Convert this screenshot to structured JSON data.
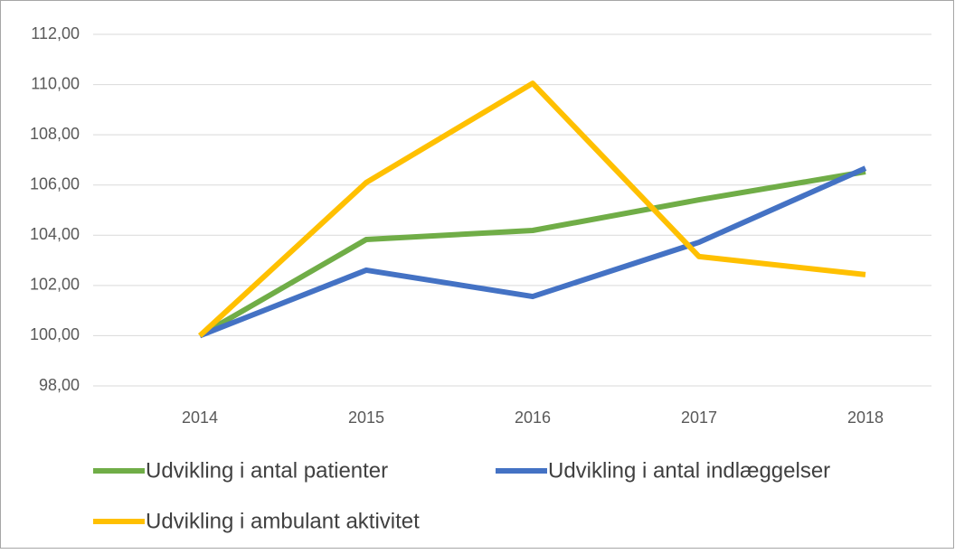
{
  "chart_data": {
    "type": "line",
    "categories": [
      "2014",
      "2015",
      "2016",
      "2017",
      "2018"
    ],
    "series": [
      {
        "name": "Udvikling i antal patienter",
        "color": "#70ad47",
        "values": [
          100,
          103.83,
          104.19,
          105.41,
          106.53
        ]
      },
      {
        "name": "Udvikling i antal indlæggelser",
        "color": "#4472c4",
        "values": [
          100,
          102.61,
          101.56,
          103.72,
          106.67
        ]
      },
      {
        "name": "Udvikling i ambulant aktivitet",
        "color": "#ffc000",
        "values": [
          100,
          106.1,
          110.05,
          103.15,
          102.43
        ]
      }
    ],
    "ylim": [
      98,
      112
    ],
    "yticks": [
      {
        "value": 98,
        "label": "98,00"
      },
      {
        "value": 100,
        "label": "100,00"
      },
      {
        "value": 102,
        "label": "102,00"
      },
      {
        "value": 104,
        "label": "104,00"
      },
      {
        "value": 106,
        "label": "106,00"
      },
      {
        "value": 108,
        "label": "108,00"
      },
      {
        "value": 110,
        "label": "110,00"
      },
      {
        "value": 112,
        "label": "112,00"
      }
    ],
    "grid": true,
    "legend": "bottom"
  }
}
